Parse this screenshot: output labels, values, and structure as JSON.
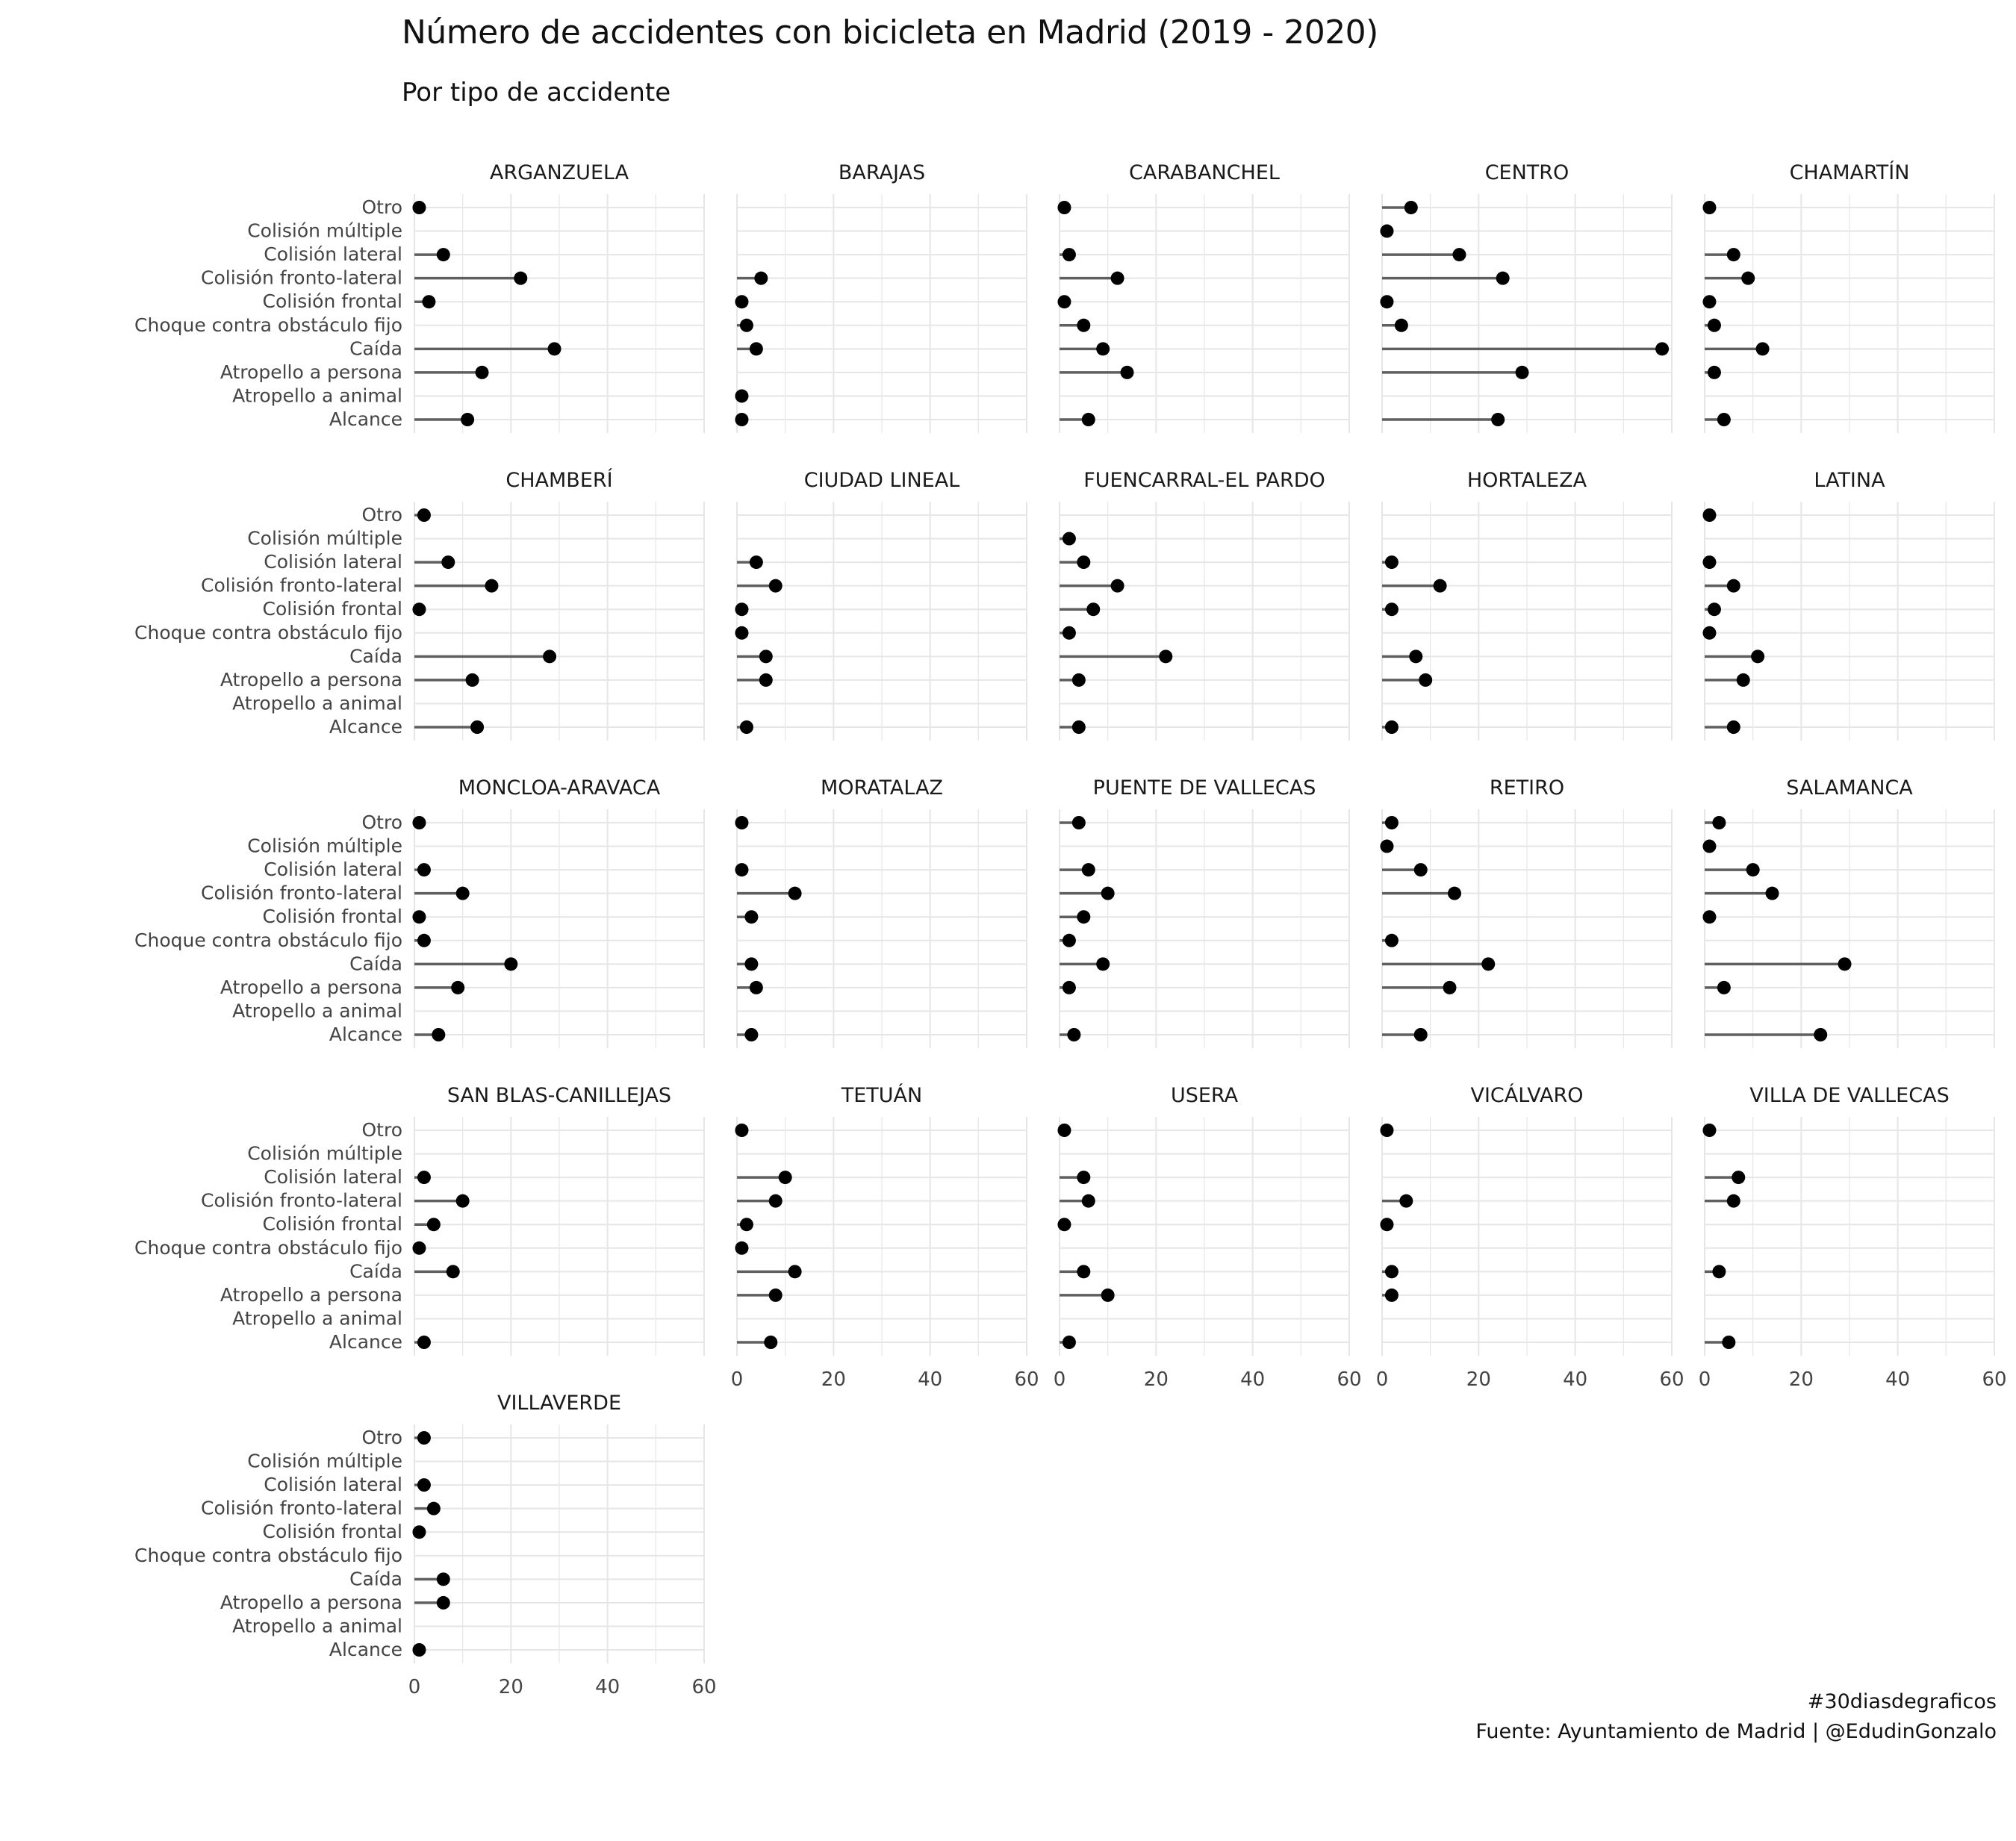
{
  "title": "Número de accidentes con bicicleta en Madrid (2019 - 2020)",
  "subtitle": "Por tipo de accidente",
  "caption": {
    "line1": "#30diasdegraficos",
    "line2": "Fuente: Ayuntamiento de Madrid | @EdudinGonzalo"
  },
  "colors": {
    "segment": "#5f5f5f",
    "point": "#000000",
    "grid": "#e6e6e6",
    "text": "#444444"
  },
  "chart_data": {
    "type": "lollipop",
    "layout": "faceted grid, 5 columns",
    "xlim": [
      0,
      60
    ],
    "x_ticks": [
      0,
      20,
      40,
      60
    ],
    "grid": true,
    "categories": [
      "Otro",
      "Colisión múltiple",
      "Colisión lateral",
      "Colisión fronto-lateral",
      "Colisión frontal",
      "Choque contra obstáculo fijo",
      "Caída",
      "Atropello a persona",
      "Atropello a animal",
      "Alcance"
    ],
    "facets": [
      {
        "name": "ARGANZUELA",
        "values": [
          1,
          null,
          6,
          22,
          3,
          null,
          29,
          14,
          null,
          11
        ]
      },
      {
        "name": "BARAJAS",
        "values": [
          null,
          null,
          null,
          5,
          1,
          2,
          4,
          null,
          1,
          1
        ]
      },
      {
        "name": "CARABANCHEL",
        "values": [
          1,
          null,
          2,
          12,
          1,
          5,
          9,
          14,
          null,
          6
        ]
      },
      {
        "name": "CENTRO",
        "values": [
          6,
          1,
          16,
          25,
          1,
          4,
          58,
          29,
          null,
          24
        ]
      },
      {
        "name": "CHAMARTÍN",
        "values": [
          1,
          null,
          6,
          9,
          1,
          2,
          12,
          2,
          null,
          4
        ]
      },
      {
        "name": "CHAMBERÍ",
        "values": [
          2,
          null,
          7,
          16,
          1,
          null,
          28,
          12,
          null,
          13
        ]
      },
      {
        "name": "CIUDAD LINEAL",
        "values": [
          null,
          null,
          4,
          8,
          1,
          1,
          6,
          6,
          null,
          2
        ]
      },
      {
        "name": "FUENCARRAL-EL PARDO",
        "values": [
          null,
          2,
          5,
          12,
          7,
          2,
          22,
          4,
          null,
          4
        ]
      },
      {
        "name": "HORTALEZA",
        "values": [
          null,
          null,
          2,
          12,
          2,
          null,
          7,
          9,
          null,
          2
        ]
      },
      {
        "name": "LATINA",
        "values": [
          1,
          null,
          1,
          6,
          2,
          1,
          11,
          8,
          null,
          6
        ]
      },
      {
        "name": "MONCLOA-ARAVACA",
        "values": [
          1,
          null,
          2,
          10,
          1,
          2,
          20,
          9,
          null,
          5
        ]
      },
      {
        "name": "MORATALAZ",
        "values": [
          1,
          null,
          1,
          12,
          3,
          null,
          3,
          4,
          null,
          3
        ]
      },
      {
        "name": "PUENTE DE VALLECAS",
        "values": [
          4,
          null,
          6,
          10,
          5,
          2,
          9,
          2,
          null,
          3
        ]
      },
      {
        "name": "RETIRO",
        "values": [
          2,
          1,
          8,
          15,
          null,
          2,
          22,
          14,
          null,
          8
        ]
      },
      {
        "name": "SALAMANCA",
        "values": [
          3,
          1,
          10,
          14,
          1,
          null,
          29,
          4,
          null,
          24
        ]
      },
      {
        "name": "SAN BLAS-CANILLEJAS",
        "values": [
          null,
          null,
          2,
          10,
          4,
          1,
          8,
          null,
          null,
          2
        ]
      },
      {
        "name": "TETUÁN",
        "values": [
          1,
          null,
          10,
          8,
          2,
          1,
          12,
          8,
          null,
          7
        ]
      },
      {
        "name": "USERA",
        "values": [
          1,
          null,
          5,
          6,
          1,
          null,
          5,
          10,
          null,
          2
        ]
      },
      {
        "name": "VICÁLVARO",
        "values": [
          1,
          null,
          null,
          5,
          1,
          null,
          2,
          2,
          null,
          null
        ]
      },
      {
        "name": "VILLA DE VALLECAS",
        "values": [
          1,
          null,
          7,
          6,
          null,
          null,
          3,
          null,
          null,
          5
        ]
      },
      {
        "name": "VILLAVERDE",
        "values": [
          2,
          null,
          2,
          4,
          1,
          null,
          6,
          6,
          null,
          1
        ]
      }
    ]
  }
}
